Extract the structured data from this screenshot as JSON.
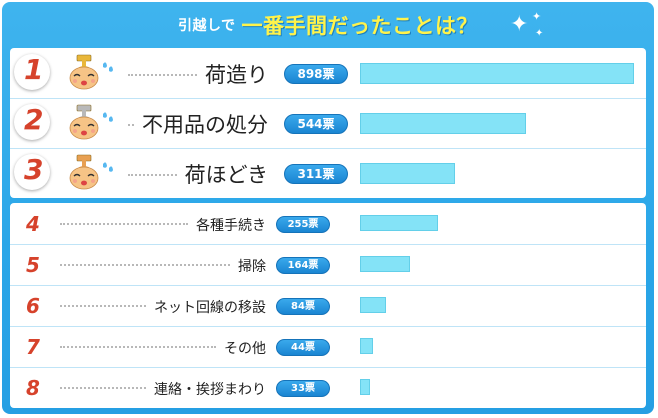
{
  "header": {
    "question_part1": "引越しで",
    "question_part2": "一番手間だったことは？"
  },
  "colors": {
    "frame": "#2aa6e8",
    "bar": "#84e3f7",
    "rank": "#d6422b",
    "gold": "#e9b73a",
    "silver": "#b9b9b9",
    "bronze": "#e8a052",
    "question_highlight": "#fff34a"
  },
  "vote_unit": "票",
  "chart_data": {
    "type": "bar",
    "categories": [
      "荷造り",
      "不用品の処分",
      "荷ほどき",
      "各種手続き",
      "掃除",
      "ネット回線の移設",
      "その他",
      "連絡・挨拶まわり"
    ],
    "ranks": [
      "1",
      "2",
      "3",
      "4",
      "5",
      "6",
      "7",
      "8"
    ],
    "values": [
      898,
      544,
      311,
      255,
      164,
      84,
      44,
      33
    ],
    "title": "引越しで 一番手間だったことは？"
  }
}
